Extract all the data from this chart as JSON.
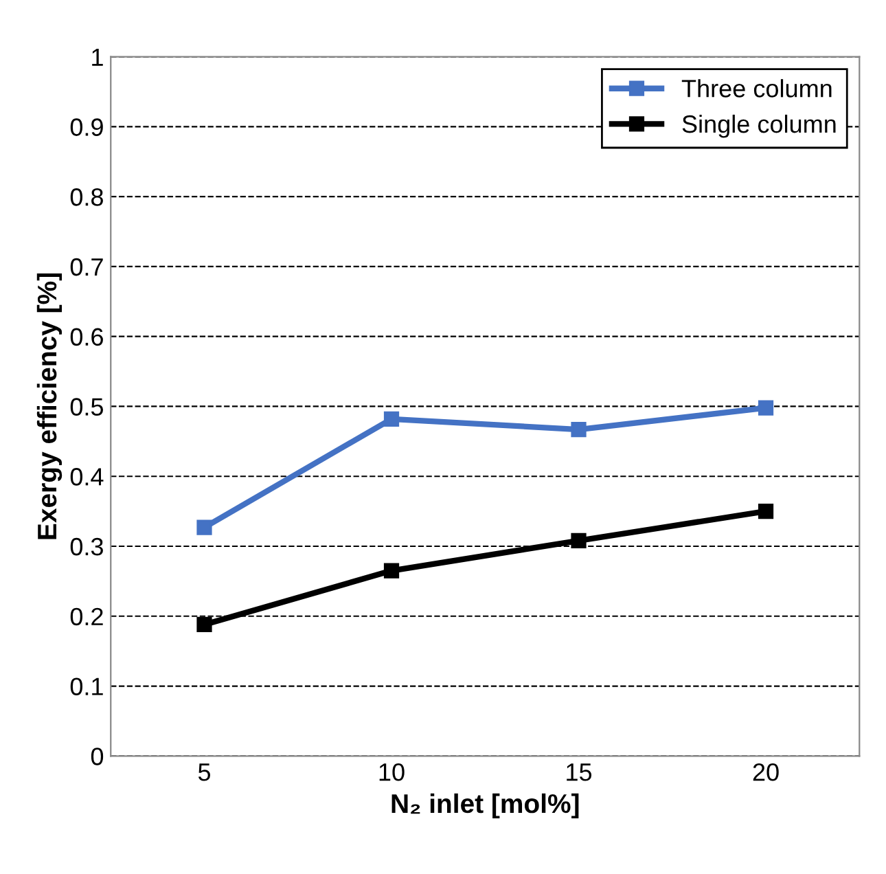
{
  "chart_data": {
    "type": "line",
    "xlabel": "N₂ inlet [mol%]",
    "ylabel": "Exergy efficiency [%]",
    "categories": [
      "5",
      "10",
      "15",
      "20"
    ],
    "series": [
      {
        "name": "Three column",
        "color": "#4472c4",
        "values": [
          0.327,
          0.482,
          0.467,
          0.498
        ]
      },
      {
        "name": "Single column",
        "color": "#000000",
        "values": [
          0.188,
          0.265,
          0.308,
          0.35
        ]
      }
    ],
    "ylim": [
      0,
      1
    ],
    "yticks": [
      0,
      0.1,
      0.2,
      0.3,
      0.4,
      0.5,
      0.6,
      0.7,
      0.8,
      0.9,
      1
    ],
    "grid": "y",
    "legend": "top right",
    "marker": "square",
    "line_style": "solid"
  }
}
